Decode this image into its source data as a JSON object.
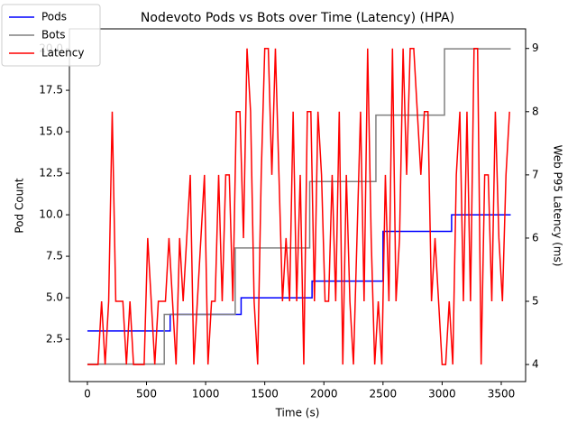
{
  "chart_data": {
    "type": "line",
    "title": "Nodevoto Pods vs Bots over Time (Latency)  (HPA)",
    "x_label": "Time (s)",
    "y_label": "Pod Count",
    "y2_label": "Web P95 Latency (ms)",
    "xlim": [
      -152,
      3706
    ],
    "xticks": [
      0,
      500,
      1000,
      1500,
      2000,
      2500,
      3000,
      3500
    ],
    "ylim": [
      -0.05,
      21.2
    ],
    "yticks": [
      {
        "value": 2.5,
        "label": "2.5"
      },
      {
        "value": 5,
        "label": "5.0"
      },
      {
        "value": 7.5,
        "label": "7.5"
      },
      {
        "value": 10,
        "label": "10.0"
      },
      {
        "value": 12.5,
        "label": "12.5"
      },
      {
        "value": 15,
        "label": "15.0"
      },
      {
        "value": 17.5,
        "label": "17.5"
      },
      {
        "value": 20,
        "label": "20.0"
      }
    ],
    "y2lim": [
      3.73,
      9.31
    ],
    "y2ticks": [
      4,
      5,
      6,
      7,
      8,
      9
    ],
    "legend": "upper left",
    "series": [
      {
        "name": "Pods",
        "color": "#0000ff",
        "x": [
          0,
          700,
          700,
          1300,
          1300,
          1900,
          1900,
          2500,
          2500,
          3080,
          3080,
          3580
        ],
        "values": [
          3,
          3,
          4,
          4,
          5,
          5,
          6,
          6,
          9,
          9,
          10,
          10
        ]
      },
      {
        "name": "Bots",
        "color": "#808080",
        "x": [
          0,
          650,
          650,
          1250,
          1250,
          1880,
          1880,
          2440,
          2440,
          3020,
          3020,
          3580
        ],
        "values": [
          1,
          1,
          4,
          4,
          8,
          8,
          12,
          12,
          16,
          16,
          20,
          20
        ]
      },
      {
        "name": "Latency",
        "color": "#ff0000",
        "axis": "y2",
        "x": [
          0,
          30,
          60,
          90,
          120,
          150,
          180,
          210,
          240,
          270,
          300,
          330,
          360,
          390,
          420,
          450,
          480,
          510,
          540,
          570,
          600,
          630,
          660,
          690,
          720,
          750,
          780,
          810,
          840,
          870,
          900,
          930,
          960,
          990,
          1020,
          1050,
          1080,
          1110,
          1140,
          1170,
          1200,
          1230,
          1260,
          1290,
          1320,
          1350,
          1380,
          1410,
          1440,
          1470,
          1500,
          1530,
          1560,
          1590,
          1620,
          1650,
          1680,
          1710,
          1740,
          1770,
          1800,
          1830,
          1860,
          1890,
          1920,
          1950,
          1980,
          2010,
          2040,
          2070,
          2100,
          2130,
          2160,
          2190,
          2220,
          2250,
          2280,
          2310,
          2340,
          2370,
          2400,
          2430,
          2460,
          2490,
          2520,
          2550,
          2580,
          2610,
          2640,
          2670,
          2700,
          2730,
          2760,
          2790,
          2820,
          2850,
          2880,
          2910,
          2940,
          2970,
          3000,
          3030,
          3060,
          3090,
          3120,
          3150,
          3180,
          3210,
          3240,
          3270,
          3300,
          3330,
          3360,
          3390,
          3420,
          3450,
          3480,
          3510,
          3540,
          3570
        ],
        "values": [
          4,
          4,
          4,
          4,
          5,
          4,
          5,
          8,
          5,
          5,
          5,
          4,
          5,
          4,
          4,
          4,
          4,
          6,
          5,
          4,
          5,
          5,
          5,
          6,
          5,
          4,
          6,
          5,
          6,
          7,
          4,
          5,
          6,
          7,
          4,
          5,
          5,
          7,
          5,
          7,
          7,
          5,
          8,
          8,
          6,
          9,
          8,
          5,
          4,
          7,
          9,
          9,
          7,
          9,
          7,
          5,
          6,
          5,
          8,
          5,
          7,
          4,
          8,
          8,
          5,
          8,
          7,
          5,
          5,
          7,
          5,
          8,
          4,
          7,
          5,
          4,
          6,
          8,
          5,
          9,
          6,
          4,
          5,
          4,
          7,
          5,
          9,
          5,
          6,
          9,
          7,
          9,
          9,
          8,
          7,
          8,
          8,
          5,
          6,
          5,
          4,
          4,
          5,
          4,
          7,
          8,
          5,
          8,
          5,
          9,
          9,
          4,
          7,
          7,
          5,
          8,
          6,
          5,
          7,
          8
        ]
      }
    ]
  }
}
